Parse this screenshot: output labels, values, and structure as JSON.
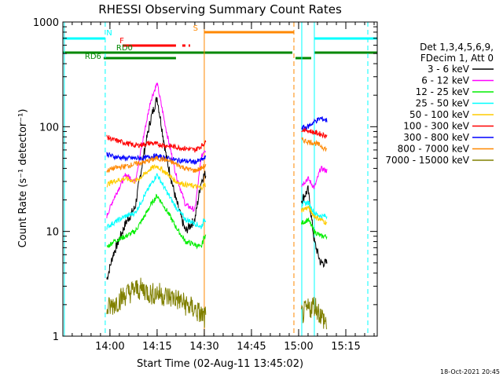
{
  "chart_data": {
    "type": "line",
    "title": "RHESSI Observing Summary Count Rates",
    "xlabel": "Start Time (02-Aug-11 13:45:02)",
    "ylabel": "Count Rate (s⁻¹ detector⁻¹)",
    "y_scale": "log",
    "ylim": [
      1,
      1000
    ],
    "xlim": [
      "13:45:02",
      "15:25:00"
    ],
    "x_ticks": [
      "14:00",
      "14:15",
      "14:30",
      "14:45",
      "15:00",
      "15:15"
    ],
    "y_ticks": [
      "1",
      "10",
      "100",
      "1000"
    ],
    "legend": {
      "placement": "right",
      "header": [
        "Det 1,3,4,5,6,9,",
        "FDecim 1, Att 0"
      ]
    },
    "footer_timestamp": "18-Oct-2021 20:45",
    "series": [
      {
        "name": "3 - 6 keV",
        "color": "#000000",
        "x": [
          "13:59",
          "14:01",
          "14:05",
          "14:08",
          "14:11",
          "14:13",
          "14:15",
          "14:18",
          "14:21",
          "14:24",
          "14:27",
          "14:29",
          "14:30",
          "15:01",
          "15:03",
          "15:05",
          "15:07",
          "15:09"
        ],
        "values": [
          3.5,
          6,
          12,
          17,
          60,
          120,
          190,
          50,
          20,
          10,
          13,
          30,
          35,
          20,
          25,
          8,
          5,
          5
        ]
      },
      {
        "name": "6 - 12 keV",
        "color": "#ff00ff",
        "x": [
          "13:59",
          "14:01",
          "14:05",
          "14:08",
          "14:11",
          "14:13",
          "14:15",
          "14:18",
          "14:21",
          "14:24",
          "14:27",
          "14:29",
          "14:30",
          "15:01",
          "15:03",
          "15:05",
          "15:07",
          "15:09"
        ],
        "values": [
          14,
          20,
          35,
          30,
          90,
          180,
          260,
          90,
          35,
          18,
          16,
          50,
          60,
          28,
          32,
          26,
          40,
          38
        ]
      },
      {
        "name": "12 - 25 keV",
        "color": "#00ee00",
        "x": [
          "13:59",
          "14:01",
          "14:05",
          "14:08",
          "14:11",
          "14:13",
          "14:15",
          "14:18",
          "14:21",
          "14:24",
          "14:27",
          "14:29",
          "14:30",
          "15:01",
          "15:03",
          "15:05",
          "15:07",
          "15:09"
        ],
        "values": [
          7,
          8,
          9,
          10,
          14,
          18,
          22,
          16,
          11,
          8,
          7.5,
          7,
          9,
          12,
          13,
          10,
          9,
          9
        ]
      },
      {
        "name": "25 - 50 keV",
        "color": "#00ffff",
        "x": [
          "13:59",
          "14:01",
          "14:05",
          "14:08",
          "14:11",
          "14:13",
          "14:15",
          "14:18",
          "14:21",
          "14:24",
          "14:27",
          "14:29",
          "14:30",
          "15:01",
          "15:03",
          "15:05",
          "15:07",
          "15:09"
        ],
        "values": [
          11,
          12,
          14,
          15,
          22,
          28,
          35,
          24,
          17,
          13,
          12,
          11,
          13,
          18,
          19,
          15,
          14,
          14
        ]
      },
      {
        "name": "50 - 100 keV",
        "color": "#ffcc00",
        "x": [
          "13:59",
          "14:01",
          "14:05",
          "14:08",
          "14:11",
          "14:13",
          "14:15",
          "14:18",
          "14:21",
          "14:24",
          "14:27",
          "14:29",
          "14:30",
          "15:01",
          "15:03",
          "15:05",
          "15:07",
          "15:09"
        ],
        "values": [
          28,
          30,
          32,
          30,
          35,
          40,
          42,
          36,
          30,
          28,
          27,
          26,
          28,
          16,
          17,
          14,
          13,
          12
        ]
      },
      {
        "name": "100 - 300 keV",
        "color": "#ff0000",
        "x": [
          "13:59",
          "14:01",
          "14:05",
          "14:08",
          "14:11",
          "14:13",
          "14:15",
          "14:18",
          "14:21",
          "14:24",
          "14:27",
          "14:29",
          "14:30",
          "15:01",
          "15:03",
          "15:05",
          "15:07",
          "15:09"
        ],
        "values": [
          80,
          75,
          70,
          66,
          68,
          70,
          68,
          66,
          64,
          62,
          60,
          65,
          70,
          95,
          92,
          88,
          85,
          82
        ]
      },
      {
        "name": "300 - 800 keV",
        "color": "#0000ff",
        "x": [
          "13:59",
          "14:01",
          "14:05",
          "14:08",
          "14:11",
          "14:13",
          "14:15",
          "14:18",
          "14:21",
          "14:24",
          "14:27",
          "14:29",
          "14:30",
          "15:01",
          "15:03",
          "15:05",
          "15:07",
          "15:09"
        ],
        "values": [
          55,
          52,
          50,
          50,
          50,
          52,
          52,
          50,
          48,
          47,
          46,
          48,
          50,
          98,
          100,
          112,
          120,
          115
        ]
      },
      {
        "name": "800 - 7000 keV",
        "color": "#ff8800",
        "x": [
          "13:59",
          "14:01",
          "14:05",
          "14:08",
          "14:11",
          "14:13",
          "14:15",
          "14:18",
          "14:21",
          "14:24",
          "14:27",
          "14:29",
          "14:30",
          "15:01",
          "15:03",
          "15:05",
          "15:07",
          "15:09"
        ],
        "values": [
          38,
          40,
          42,
          44,
          46,
          48,
          50,
          48,
          44,
          40,
          38,
          40,
          42,
          75,
          72,
          70,
          66,
          60
        ]
      },
      {
        "name": "7000 - 15000 keV",
        "color": "#808000",
        "x": [
          "13:59",
          "14:01",
          "14:05",
          "14:08",
          "14:11",
          "14:13",
          "14:15",
          "14:18",
          "14:21",
          "14:24",
          "14:27",
          "14:29",
          "14:30",
          "15:01",
          "15:03",
          "15:05",
          "15:07",
          "15:09"
        ],
        "values": [
          1.8,
          2.0,
          2.5,
          2.8,
          2.8,
          2.5,
          2.6,
          2.4,
          2.3,
          2.0,
          1.8,
          1.6,
          1.5,
          1.6,
          1.8,
          2.0,
          1.6,
          1.3
        ]
      }
    ],
    "flag_bars": [
      {
        "label": "N",
        "color": "#00ffff",
        "segments": [
          [
            "13:45",
            "13:58:30"
          ],
          [
            "15:05",
            "15:25"
          ]
        ]
      },
      {
        "label": "S",
        "color": "#ff8800",
        "segments": [
          [
            "14:30",
            "14:58:30"
          ]
        ]
      },
      {
        "label": "F",
        "color": "#ff0000",
        "segments": [
          [
            "14:04",
            "14:21"
          ],
          [
            "14:23",
            "14:24"
          ],
          [
            "14:25",
            "14:25:30"
          ]
        ]
      },
      {
        "label": "RD0",
        "color": "#008800",
        "segments": [
          [
            "13:45",
            "14:58"
          ],
          [
            "15:05",
            "15:25"
          ]
        ]
      },
      {
        "label": "RD6",
        "color": "#008800",
        "segments": [
          [
            "13:58",
            "14:21"
          ],
          [
            "14:59",
            "15:04"
          ]
        ]
      }
    ],
    "vertical_markers": [
      {
        "time": "13:45:30",
        "color": "#00ffff",
        "style": "solid"
      },
      {
        "time": "13:58:30",
        "color": "#00ffff",
        "style": "dashed"
      },
      {
        "time": "14:30",
        "color": "#ff8800",
        "style": "solid"
      },
      {
        "time": "14:58:30",
        "color": "#ff8800",
        "style": "dashed"
      },
      {
        "time": "15:01",
        "color": "#00ffff",
        "style": "solid"
      },
      {
        "time": "15:05",
        "color": "#00ffff",
        "style": "solid"
      },
      {
        "time": "15:22",
        "color": "#00ffff",
        "style": "dashed"
      }
    ],
    "data_gaps": [
      [
        "14:30:30",
        "15:00:45"
      ]
    ]
  }
}
